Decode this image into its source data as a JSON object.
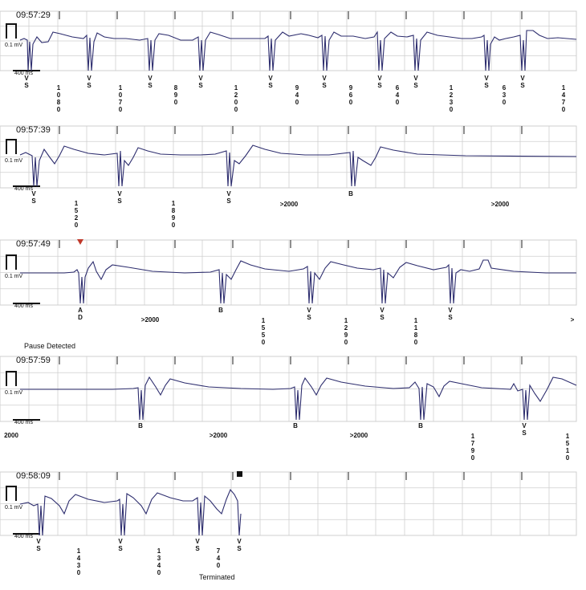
{
  "scale": {
    "amplitude_label": "0.1 mV",
    "time_label": "400 ms"
  },
  "colors": {
    "trace": "#2d2d6e",
    "grid": "#cfcfcf",
    "tick": "#444444",
    "marker_red": "#c0392b",
    "marker_black": "#111111"
  },
  "strips": [
    {
      "time": "09:57:29",
      "markers": [
        {
          "t": "V",
          "b": "S"
        },
        {
          "t": "V",
          "b": "S"
        },
        {
          "t": "V",
          "b": "S"
        },
        {
          "t": "V",
          "b": "S"
        },
        {
          "t": "V",
          "b": "S"
        },
        {
          "t": "V",
          "b": "S"
        },
        {
          "t": "V",
          "b": "S"
        },
        {
          "t": "V",
          "b": "S"
        },
        {
          "t": "V",
          "b": "S"
        },
        {
          "t": "V",
          "b": "S"
        }
      ],
      "intervals": [
        "1080",
        "1070",
        "890",
        "1200",
        "940",
        "960",
        "640",
        "1230",
        "630",
        "1470"
      ]
    },
    {
      "time": "09:57:39",
      "markers": [
        {
          "t": "V",
          "b": "S"
        },
        {
          "t": "V",
          "b": "S"
        },
        {
          "t": "V",
          "b": "S"
        },
        {
          "t": "",
          "b": "B"
        }
      ],
      "intervals": [
        "1520",
        "1890",
        ">2000",
        ">2000"
      ]
    },
    {
      "time": "09:57:49",
      "annotation": "Pause Detected",
      "markers": [
        {
          "t": "A",
          "b": "D"
        },
        {
          "t": "",
          "b": "B"
        },
        {
          "t": "V",
          "b": "S"
        },
        {
          "t": "V",
          "b": "S"
        },
        {
          "t": "V",
          "b": "S"
        }
      ],
      "intervals": [
        ">2000",
        "1550",
        "1290",
        "1180",
        ">"
      ]
    },
    {
      "time": "09:57:59",
      "markers": [
        {
          "t": "",
          "b": "B"
        },
        {
          "t": "",
          "b": "B"
        },
        {
          "t": "",
          "b": "B"
        },
        {
          "t": "V",
          "b": "S"
        }
      ],
      "intervals": [
        "2000",
        ">2000",
        ">2000",
        "1790",
        "1510"
      ]
    },
    {
      "time": "09:58:09",
      "annotation": "Terminated",
      "markers": [
        {
          "t": "V",
          "b": "S"
        },
        {
          "t": "V",
          "b": "S"
        },
        {
          "t": "V",
          "b": "S"
        },
        {
          "t": "V",
          "b": "S"
        }
      ],
      "intervals": [
        "1430",
        "1340",
        "740"
      ]
    }
  ]
}
